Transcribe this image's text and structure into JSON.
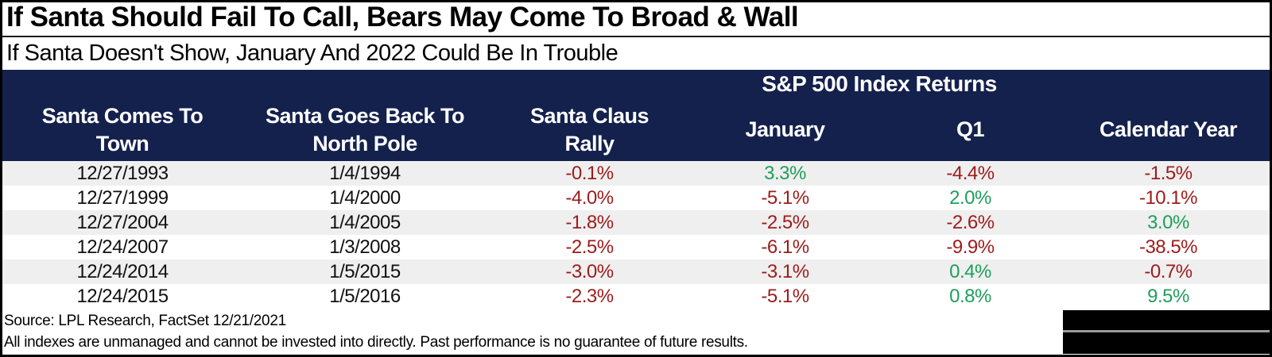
{
  "header": {
    "title": "If Santa Should Fail To Call, Bears May Come To Broad & Wall",
    "subtitle": "If Santa Doesn't Show, January And 2022 Could Be In Trouble"
  },
  "table": {
    "group_header": "S&P 500 Index Returns",
    "columns": [
      "Santa Comes To\nTown",
      "Santa Goes Back To\nNorth Pole",
      "Santa Claus\nRally",
      "January",
      "Q1",
      "Calendar Year"
    ],
    "rows": [
      [
        "12/27/1993",
        "1/4/1994",
        "-0.1%",
        "3.3%",
        "-4.4%",
        "-1.5%"
      ],
      [
        "12/27/1999",
        "1/4/2000",
        "-4.0%",
        "-5.1%",
        "2.0%",
        "-10.1%"
      ],
      [
        "12/27/2004",
        "1/4/2005",
        "-1.8%",
        "-2.5%",
        "-2.6%",
        "3.0%"
      ],
      [
        "12/24/2007",
        "1/3/2008",
        "-2.5%",
        "-6.1%",
        "-9.9%",
        "-38.5%"
      ],
      [
        "12/24/2014",
        "1/5/2015",
        "-3.0%",
        "-3.1%",
        "0.4%",
        "-0.7%"
      ],
      [
        "12/24/2015",
        "1/5/2016",
        "-2.3%",
        "-5.1%",
        "0.8%",
        "9.5%"
      ]
    ]
  },
  "footer": {
    "source": "Source: LPL Research, FactSet 12/21/2021",
    "disclaimer": "All indexes are unmanaged and cannot be invested into directly. Past performance is no guarantee of future results."
  },
  "colors": {
    "navy": "#14214d",
    "positive": "#1e9e5a",
    "negative": "#9e1b1b",
    "row_stripe": "#efefef"
  },
  "chart_data": {
    "type": "table",
    "title": "If Santa Should Fail To Call, Bears May Come To Broad & Wall",
    "subtitle": "If Santa Doesn't Show, January And 2022 Could Be In Trouble",
    "group_header": "S&P 500 Index Returns (applies to January, Q1, Calendar Year columns)",
    "columns": [
      "Santa Comes To Town",
      "Santa Goes Back To North Pole",
      "Santa Claus Rally",
      "January",
      "Q1",
      "Calendar Year"
    ],
    "rows": [
      [
        "12/27/1993",
        "1/4/1994",
        "-0.1%",
        "3.3%",
        "-4.4%",
        "-1.5%"
      ],
      [
        "12/27/1999",
        "1/4/2000",
        "-4.0%",
        "-5.1%",
        "2.0%",
        "-10.1%"
      ],
      [
        "12/27/2004",
        "1/4/2005",
        "-1.8%",
        "-2.5%",
        "-2.6%",
        "3.0%"
      ],
      [
        "12/24/2007",
        "1/3/2008",
        "-2.5%",
        "-6.1%",
        "-9.9%",
        "-38.5%"
      ],
      [
        "12/24/2014",
        "1/5/2015",
        "-3.0%",
        "-3.1%",
        "0.4%",
        "-0.7%"
      ],
      [
        "12/24/2015",
        "1/5/2016",
        "-2.3%",
        "-5.1%",
        "0.8%",
        "9.5%"
      ]
    ],
    "color_coding": "negative returns dark red, positive returns green",
    "source": "Source: LPL Research, FactSet 12/21/2021",
    "disclaimer": "All indexes are unmanaged and cannot be invested into directly. Past performance is no guarantee of future results."
  }
}
